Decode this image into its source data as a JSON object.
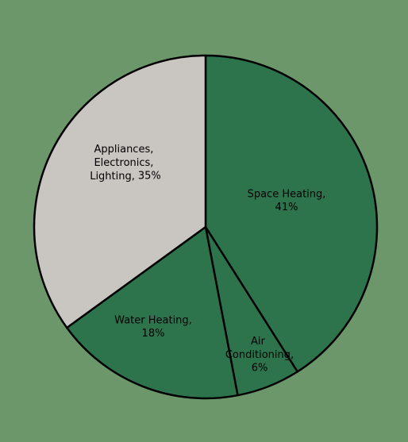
{
  "chart_data": {
    "type": "pie",
    "categories": [
      "Space Heating,",
      "Air Conditioning,",
      "Water Heating,",
      "Appliances, Electronics, Lighting,"
    ],
    "values": [
      41,
      6,
      18,
      35
    ],
    "value_labels": [
      "41%",
      "6%",
      "18%",
      "35%"
    ],
    "colors": [
      "#2d744d",
      "#2d744d",
      "#2d744d",
      "#c9c5c0"
    ]
  }
}
